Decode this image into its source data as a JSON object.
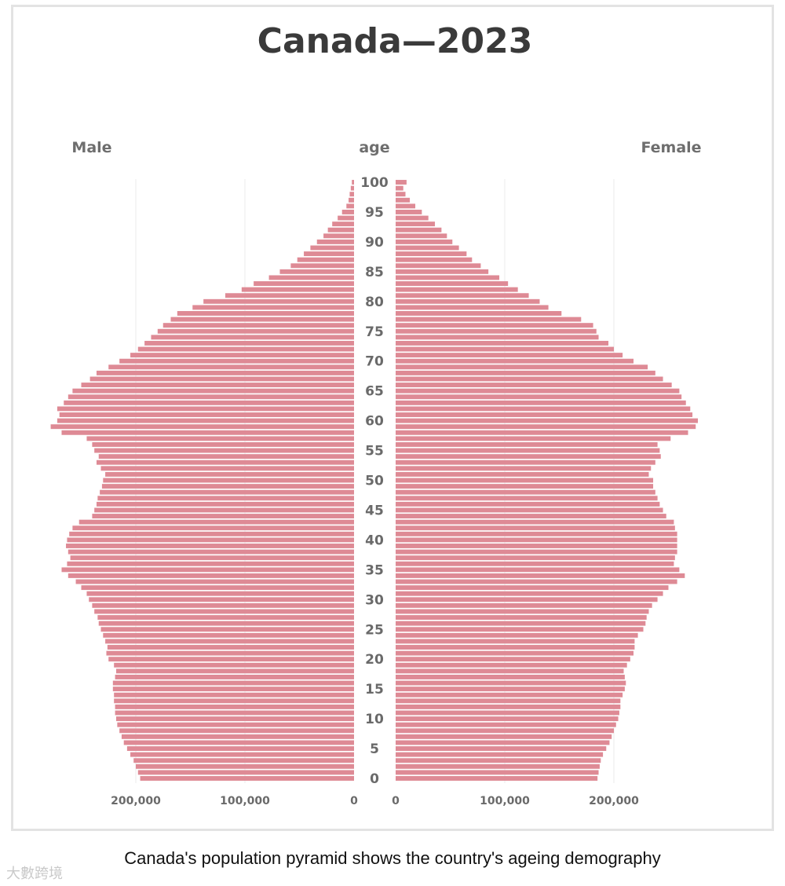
{
  "caption": "Canada's population pyramid shows the country's ageing demography",
  "watermark": "大數跨境",
  "colors": {
    "bar": "#de8a95",
    "grid": "#ebebeb",
    "text": "#6a6a6a",
    "title": "#3a3a3a",
    "frame": "#e3e3e3"
  },
  "chart_data": {
    "type": "bar",
    "orientation": "horizontal",
    "title": "Canada—2023",
    "left_label": "Male",
    "center_label": "age",
    "right_label": "Female",
    "age_ticks": [
      "100",
      "95",
      "90",
      "85",
      "80",
      "75",
      "70",
      "65",
      "60",
      "55",
      "50",
      "45",
      "40",
      "35",
      "30",
      "25",
      "20",
      "15",
      "10",
      "5",
      "0"
    ],
    "x_ticks_left": [
      "200,000",
      "100,000",
      "0"
    ],
    "x_ticks_right": [
      "0",
      "100,000",
      "200,000"
    ],
    "xlim": [
      0,
      280000
    ],
    "grid": true,
    "ages": [
      0,
      1,
      2,
      3,
      4,
      5,
      6,
      7,
      8,
      9,
      10,
      11,
      12,
      13,
      14,
      15,
      16,
      17,
      18,
      19,
      20,
      21,
      22,
      23,
      24,
      25,
      26,
      27,
      28,
      29,
      30,
      31,
      32,
      33,
      34,
      35,
      36,
      37,
      38,
      39,
      40,
      41,
      42,
      43,
      44,
      45,
      46,
      47,
      48,
      49,
      50,
      51,
      52,
      53,
      54,
      55,
      56,
      57,
      58,
      59,
      60,
      61,
      62,
      63,
      64,
      65,
      66,
      67,
      68,
      69,
      70,
      71,
      72,
      73,
      74,
      75,
      76,
      77,
      78,
      79,
      80,
      81,
      82,
      83,
      84,
      85,
      86,
      87,
      88,
      89,
      90,
      91,
      92,
      93,
      94,
      95,
      96,
      97,
      98,
      99,
      100
    ],
    "series": [
      {
        "name": "Male",
        "values": [
          196000,
          198000,
          200000,
          202000,
          205000,
          208000,
          211000,
          213000,
          215000,
          217000,
          218000,
          219000,
          219000,
          220000,
          220000,
          221000,
          221000,
          219000,
          218000,
          220000,
          225000,
          227000,
          226000,
          228000,
          230000,
          232000,
          234000,
          235000,
          238000,
          240000,
          243000,
          245000,
          250000,
          255000,
          262000,
          268000,
          263000,
          260000,
          262000,
          264000,
          263000,
          261000,
          258000,
          252000,
          240000,
          238000,
          236000,
          235000,
          233000,
          231000,
          230000,
          228000,
          232000,
          236000,
          234000,
          238000,
          240000,
          245000,
          268000,
          278000,
          272000,
          270000,
          272000,
          266000,
          262000,
          258000,
          250000,
          242000,
          236000,
          225000,
          215000,
          205000,
          198000,
          192000,
          186000,
          180000,
          175000,
          168000,
          162000,
          148000,
          138000,
          118000,
          103000,
          92000,
          78000,
          68000,
          58000,
          52000,
          46000,
          40000,
          34000,
          28000,
          24000,
          20000,
          15000,
          11000,
          7000,
          5000,
          4000,
          3000,
          2000
        ]
      },
      {
        "name": "Female",
        "values": [
          185000,
          186000,
          187000,
          188000,
          190000,
          193000,
          196000,
          198000,
          200000,
          202000,
          204000,
          205000,
          206000,
          206000,
          208000,
          210000,
          211000,
          210000,
          209000,
          212000,
          215000,
          218000,
          219000,
          219000,
          222000,
          227000,
          229000,
          230000,
          232000,
          235000,
          240000,
          245000,
          250000,
          258000,
          265000,
          260000,
          255000,
          256000,
          258000,
          258000,
          258000,
          258000,
          256000,
          255000,
          248000,
          245000,
          242000,
          240000,
          238000,
          236000,
          236000,
          232000,
          234000,
          238000,
          243000,
          242000,
          240000,
          252000,
          268000,
          275000,
          277000,
          272000,
          270000,
          266000,
          262000,
          260000,
          253000,
          245000,
          238000,
          231000,
          218000,
          208000,
          200000,
          195000,
          186000,
          184000,
          181000,
          170000,
          152000,
          140000,
          132000,
          122000,
          112000,
          103000,
          95000,
          85000,
          78000,
          70000,
          65000,
          58000,
          52000,
          47000,
          42000,
          36000,
          30000,
          24000,
          18000,
          13000,
          9000,
          7000,
          10000
        ]
      }
    ]
  }
}
